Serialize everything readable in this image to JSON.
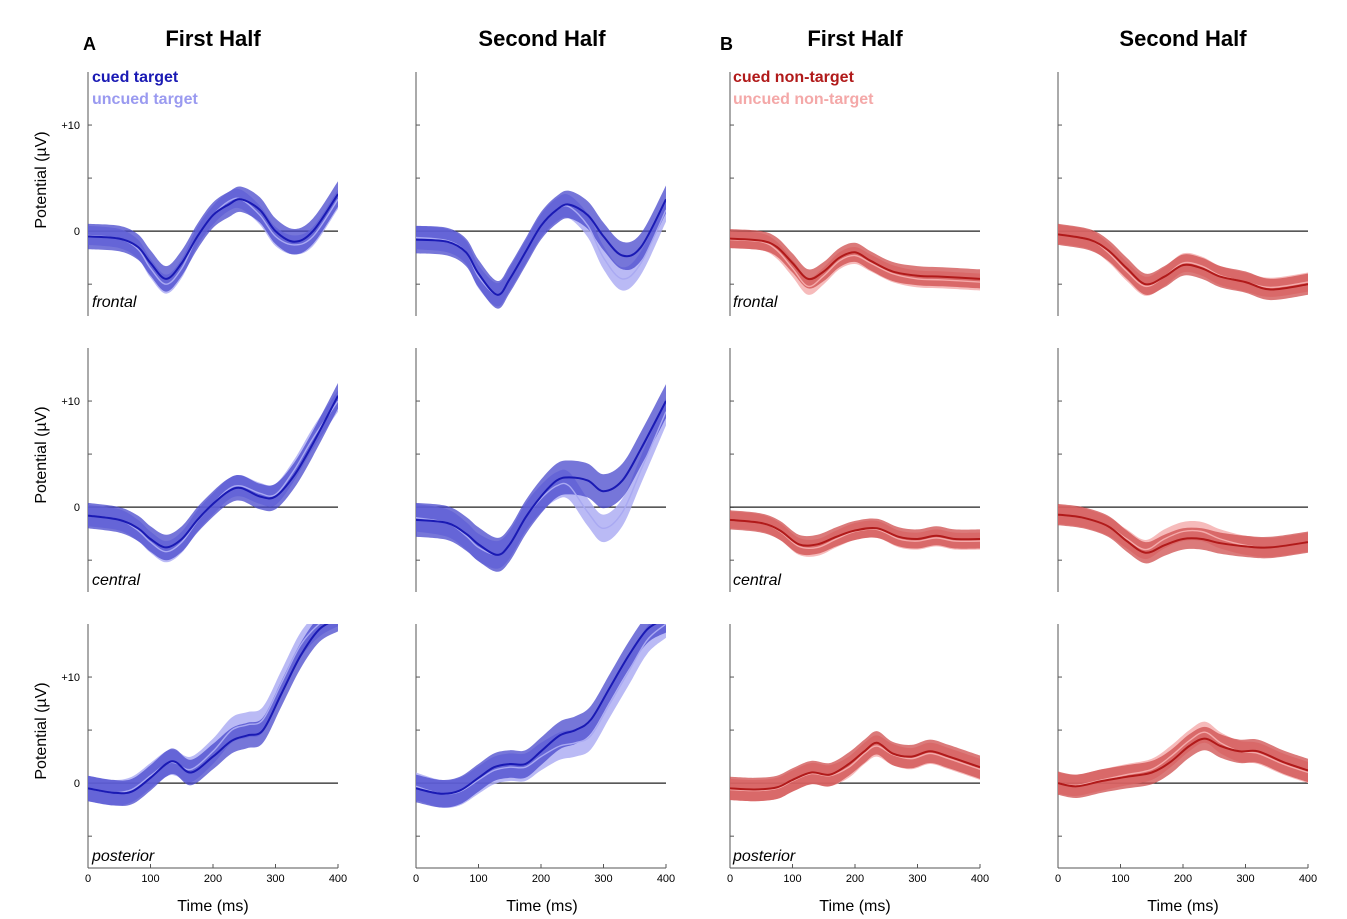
{
  "figure": {
    "panel_letters": [
      "A",
      "B"
    ],
    "column_titles": [
      "First Half",
      "Second Half",
      "First Half",
      "Second Half"
    ],
    "ylabel": "Potential (µV)",
    "xlabel": "Time (ms)",
    "x_ticks": [
      "0",
      "100",
      "200",
      "300",
      "400"
    ],
    "y_ticks": [
      "0",
      "+10"
    ],
    "regions": [
      "frontal",
      "central",
      "posterior"
    ],
    "legend_A": {
      "cued": "cued target",
      "uncued": "uncued target"
    },
    "legend_B": {
      "cued": "cued non-target",
      "uncued": "uncued non-target"
    },
    "colors": {
      "blue_line": "#1a1ab4",
      "blue_cued_band": "#4848cc",
      "blue_uncued_band": "#a9a9f2",
      "red_line": "#b11a1a",
      "red_cued_band": "#cf4d4d",
      "red_uncued_band": "#f4aaaa"
    }
  },
  "chart_data": [
    {
      "type": "line",
      "panel": "A",
      "column": "First Half",
      "region": "frontal",
      "xlim": [
        0,
        400
      ],
      "ylim": [
        -8,
        15
      ],
      "x": [
        0,
        50,
        80,
        100,
        125,
        150,
        175,
        200,
        225,
        245,
        275,
        300,
        330,
        360,
        400
      ],
      "series": [
        {
          "name": "cued target",
          "values": [
            -0.5,
            -0.7,
            -1.5,
            -3,
            -4.5,
            -3,
            -0.5,
            1.5,
            2.5,
            3,
            2,
            0,
            -1,
            0,
            3.5
          ],
          "band": 1.2
        },
        {
          "name": "uncued target",
          "values": [
            -0.4,
            -0.7,
            -1.7,
            -3.5,
            -5,
            -3.5,
            -0.5,
            1.5,
            2.8,
            3,
            1.5,
            -0.5,
            -1.3,
            -0.5,
            3
          ],
          "band": 0.9
        }
      ]
    },
    {
      "type": "line",
      "panel": "A",
      "column": "Second Half",
      "region": "frontal",
      "xlim": [
        0,
        400
      ],
      "ylim": [
        -8,
        15
      ],
      "x": [
        0,
        50,
        80,
        100,
        130,
        150,
        175,
        200,
        225,
        245,
        275,
        300,
        330,
        360,
        400
      ],
      "series": [
        {
          "name": "cued target",
          "values": [
            -0.8,
            -1,
            -2,
            -4,
            -6,
            -4.5,
            -2,
            0.5,
            2,
            2.5,
            1.5,
            -0.5,
            -2.3,
            -1.5,
            3
          ],
          "band": 1.3
        },
        {
          "name": "uncued target",
          "values": [
            -0.6,
            -0.9,
            -2,
            -4.3,
            -6,
            -4.5,
            -2,
            0.5,
            2,
            2.3,
            0.5,
            -2.5,
            -4.5,
            -3,
            2
          ],
          "band": 1.1
        }
      ]
    },
    {
      "type": "line",
      "panel": "B",
      "column": "First Half",
      "region": "frontal",
      "xlim": [
        0,
        400
      ],
      "ylim": [
        -8,
        15
      ],
      "x": [
        0,
        50,
        75,
        100,
        125,
        150,
        175,
        200,
        225,
        260,
        300,
        340,
        400
      ],
      "series": [
        {
          "name": "cued non-target",
          "values": [
            -0.7,
            -0.9,
            -1.5,
            -3,
            -4.5,
            -3.8,
            -2.5,
            -2,
            -2.8,
            -3.8,
            -4.2,
            -4.3,
            -4.5
          ],
          "band": 0.9
        },
        {
          "name": "uncued non-target",
          "values": [
            -0.8,
            -1,
            -1.8,
            -3.5,
            -5.2,
            -4.2,
            -2.8,
            -2.3,
            -3,
            -4,
            -4.5,
            -4.6,
            -4.8
          ],
          "band": 0.8
        }
      ]
    },
    {
      "type": "line",
      "panel": "B",
      "column": "Second Half",
      "region": "frontal",
      "xlim": [
        0,
        400
      ],
      "ylim": [
        -8,
        15
      ],
      "x": [
        0,
        50,
        80,
        110,
        140,
        170,
        200,
        230,
        260,
        300,
        340,
        400
      ],
      "series": [
        {
          "name": "cued non-target",
          "values": [
            -0.3,
            -0.8,
            -1.8,
            -3.5,
            -5,
            -4.3,
            -3.2,
            -3.5,
            -4.3,
            -4.8,
            -5.5,
            -5
          ],
          "band": 1.0
        },
        {
          "name": "uncued non-target",
          "values": [
            -0.3,
            -0.8,
            -2,
            -3.8,
            -5.2,
            -4.3,
            -3,
            -3.3,
            -4.2,
            -4.8,
            -5.3,
            -4.8
          ],
          "band": 0.9
        }
      ]
    },
    {
      "type": "line",
      "panel": "A",
      "column": "First Half",
      "region": "central",
      "xlim": [
        0,
        400
      ],
      "ylim": [
        -8,
        15
      ],
      "x": [
        0,
        50,
        80,
        100,
        125,
        150,
        175,
        200,
        225,
        245,
        275,
        300,
        330,
        360,
        400
      ],
      "series": [
        {
          "name": "cued target",
          "values": [
            -0.8,
            -1.2,
            -2,
            -3,
            -3.8,
            -3,
            -1.2,
            0.3,
            1.5,
            1.8,
            1,
            1,
            3,
            6,
            10.5
          ],
          "band": 1.2
        },
        {
          "name": "uncued target",
          "values": [
            -0.8,
            -1.2,
            -2.2,
            -3.3,
            -4.2,
            -3.3,
            -1.3,
            0.3,
            1.7,
            2,
            1.3,
            1.2,
            3.5,
            6.5,
            10
          ],
          "band": 1.0
        }
      ]
    },
    {
      "type": "line",
      "panel": "A",
      "column": "Second Half",
      "region": "central",
      "xlim": [
        0,
        400
      ],
      "ylim": [
        -8,
        15
      ],
      "x": [
        0,
        50,
        80,
        100,
        130,
        150,
        175,
        200,
        225,
        245,
        275,
        300,
        330,
        360,
        400
      ],
      "series": [
        {
          "name": "cued target",
          "values": [
            -1.2,
            -1.5,
            -2.5,
            -3.5,
            -4.5,
            -3.5,
            -1,
            1,
            2.5,
            2.8,
            2.5,
            1.5,
            2.5,
            5.5,
            10
          ],
          "band": 1.6
        },
        {
          "name": "uncued target",
          "values": [
            -1,
            -1.5,
            -2.7,
            -3.8,
            -4.5,
            -3.5,
            -1,
            0.8,
            2,
            2,
            -0.5,
            -2,
            -0.5,
            3.5,
            9
          ],
          "band": 1.3
        }
      ]
    },
    {
      "type": "line",
      "panel": "B",
      "column": "First Half",
      "region": "central",
      "xlim": [
        0,
        400
      ],
      "ylim": [
        -8,
        15
      ],
      "x": [
        0,
        50,
        80,
        110,
        140,
        170,
        200,
        235,
        270,
        300,
        330,
        360,
        400
      ],
      "series": [
        {
          "name": "cued non-target",
          "values": [
            -1.2,
            -1.5,
            -2.2,
            -3.5,
            -3.5,
            -2.8,
            -2.2,
            -2,
            -2.8,
            -3,
            -2.7,
            -3,
            -3
          ],
          "band": 0.9
        },
        {
          "name": "uncued non-target",
          "values": [
            -1.2,
            -1.5,
            -2.3,
            -3.7,
            -3.8,
            -3,
            -2.3,
            -2.1,
            -3,
            -3.2,
            -2.9,
            -3.2,
            -3.2
          ],
          "band": 0.8
        }
      ]
    },
    {
      "type": "line",
      "panel": "B",
      "column": "Second Half",
      "region": "central",
      "xlim": [
        0,
        400
      ],
      "ylim": [
        -8,
        15
      ],
      "x": [
        0,
        40,
        80,
        110,
        140,
        170,
        200,
        230,
        260,
        300,
        340,
        400
      ],
      "series": [
        {
          "name": "cued non-target",
          "values": [
            -0.7,
            -1,
            -1.8,
            -3.2,
            -4.3,
            -3.6,
            -3,
            -3,
            -3.4,
            -3.7,
            -3.8,
            -3.3
          ],
          "band": 1.0
        },
        {
          "name": "uncued non-target",
          "values": [
            -0.7,
            -1,
            -1.8,
            -3,
            -4,
            -3,
            -2.3,
            -2.3,
            -3,
            -3.6,
            -3.8,
            -3.3
          ],
          "band": 0.9
        }
      ]
    },
    {
      "type": "line",
      "panel": "A",
      "column": "First Half",
      "region": "posterior",
      "xlim": [
        0,
        400
      ],
      "ylim": [
        -8,
        15
      ],
      "x": [
        0,
        40,
        70,
        100,
        125,
        140,
        165,
        200,
        230,
        255,
        280,
        310,
        340,
        370,
        400
      ],
      "series": [
        {
          "name": "cued target",
          "values": [
            -0.5,
            -0.9,
            -0.8,
            0.5,
            1.8,
            2,
            1,
            2.5,
            4,
            4.5,
            5,
            8.5,
            12,
            14.5,
            15.5
          ],
          "band": 1.2
        },
        {
          "name": "uncued target",
          "values": [
            -0.5,
            -0.9,
            -0.6,
            0.7,
            1.8,
            1.9,
            1.3,
            3,
            5,
            5.5,
            6,
            9.5,
            13,
            15,
            16
          ],
          "band": 1.2
        }
      ]
    },
    {
      "type": "line",
      "panel": "A",
      "column": "Second Half",
      "region": "posterior",
      "xlim": [
        0,
        400
      ],
      "ylim": [
        -8,
        15
      ],
      "x": [
        0,
        40,
        70,
        100,
        125,
        150,
        175,
        200,
        230,
        255,
        280,
        310,
        340,
        370,
        400
      ],
      "series": [
        {
          "name": "cued target",
          "values": [
            -0.5,
            -1,
            -0.7,
            0.5,
            1.5,
            1.8,
            1.8,
            3,
            4.5,
            5,
            6,
            9,
            12,
            14.5,
            15.5
          ],
          "band": 1.3
        },
        {
          "name": "uncued target",
          "values": [
            -0.3,
            -1,
            -0.8,
            0.3,
            1.2,
            1.5,
            1.5,
            2.5,
            3.5,
            3.8,
            4.5,
            7.5,
            10.5,
            13.5,
            15
          ],
          "band": 1.3
        }
      ]
    },
    {
      "type": "line",
      "panel": "B",
      "column": "First Half",
      "region": "posterior",
      "xlim": [
        0,
        400
      ],
      "ylim": [
        -8,
        15
      ],
      "x": [
        0,
        40,
        75,
        100,
        130,
        160,
        190,
        215,
        235,
        260,
        290,
        320,
        350,
        400
      ],
      "series": [
        {
          "name": "cued non-target",
          "values": [
            -0.5,
            -0.6,
            -0.4,
            0.3,
            1,
            0.8,
            1.8,
            3,
            3.8,
            2.8,
            2.5,
            3,
            2.5,
            1.5
          ],
          "band": 1.1
        },
        {
          "name": "uncued non-target",
          "values": [
            -0.6,
            -0.7,
            -0.5,
            0.2,
            0.9,
            0.7,
            1.5,
            2.8,
            3.5,
            2.7,
            2.3,
            2.8,
            2.3,
            1.3
          ],
          "band": 1.0
        }
      ]
    },
    {
      "type": "line",
      "panel": "B",
      "column": "Second Half",
      "region": "posterior",
      "xlim": [
        0,
        400
      ],
      "ylim": [
        -8,
        15
      ],
      "x": [
        0,
        30,
        70,
        110,
        150,
        180,
        210,
        235,
        260,
        290,
        320,
        360,
        400
      ],
      "series": [
        {
          "name": "cued non-target",
          "values": [
            0,
            -0.3,
            0.2,
            0.6,
            1,
            2,
            3.5,
            4.2,
            3.5,
            3,
            3,
            2,
            1.2
          ],
          "band": 1.1
        },
        {
          "name": "uncued non-target",
          "values": [
            0,
            -0.2,
            0.3,
            0.8,
            1.3,
            2.5,
            4,
            4.8,
            3.8,
            3,
            2.8,
            1.8,
            1
          ],
          "band": 1.0
        }
      ]
    }
  ]
}
